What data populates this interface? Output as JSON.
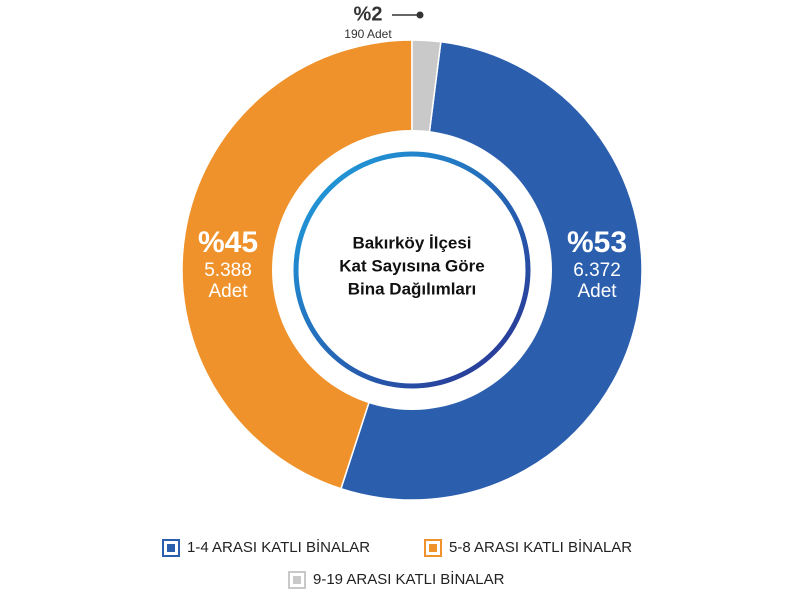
{
  "chart_data": {
    "type": "pie",
    "title": [
      "Bakırköy İlçesi",
      "Kat Sayısına Göre",
      "Bina Dağılımları"
    ],
    "categories": [
      "1-4 ARASI KATLI BİNALAR",
      "5-8 ARASI KATLI BİNALAR",
      "9-19 ARASI KATLI BİNALAR"
    ],
    "values": [
      53,
      45,
      2
    ],
    "value_labels": [
      "%53",
      "%45",
      "%2"
    ],
    "counts": [
      6372,
      5388,
      190
    ],
    "count_labels": [
      "6.372",
      "5.388",
      "190"
    ],
    "unit": "Adet",
    "colors": [
      "#2b5fae",
      "#f0922b",
      "#c9c9c9"
    ],
    "legend": "bottom"
  }
}
